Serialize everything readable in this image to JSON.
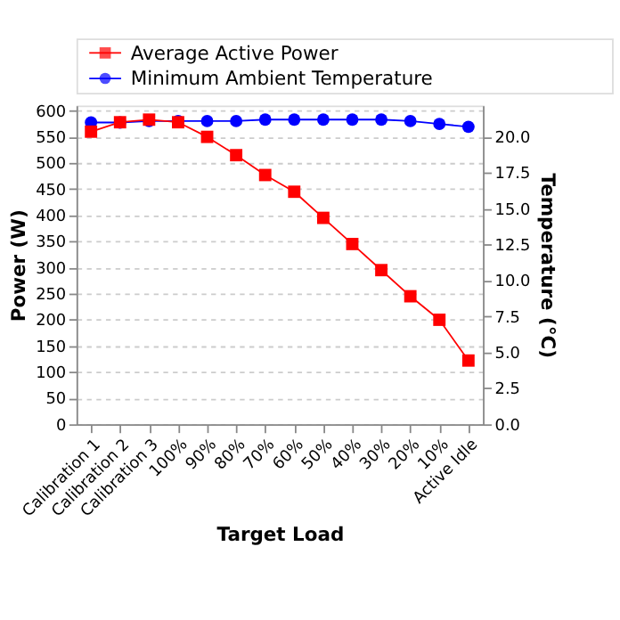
{
  "chart_data": {
    "type": "line",
    "xlabel": "Target Load",
    "ylabel": "Power (W)",
    "y2label": "Temperature  (°C)",
    "categories": [
      "Calibration 1",
      "Calibration 2",
      "Calibration 3",
      "100%",
      "90%",
      "80%",
      "70%",
      "60%",
      "50%",
      "40%",
      "30%",
      "20%",
      "10%",
      "Active Idle"
    ],
    "series": [
      {
        "name": "Average Active Power",
        "color": "#ff0000",
        "marker": "square",
        "values": [
          560,
          578,
          583,
          578,
          550,
          515,
          477,
          445,
          395,
          345,
          295,
          245,
          200,
          122
        ]
      },
      {
        "name": "Minimum Ambient Temperature",
        "color": "#0000ff",
        "marker": "circle",
        "axis": "y2",
        "values": [
          21.0,
          21.0,
          21.1,
          21.1,
          21.1,
          21.1,
          21.2,
          21.2,
          21.2,
          21.2,
          21.2,
          21.1,
          20.9,
          20.7
        ]
      }
    ],
    "ylim": [
      0,
      610
    ],
    "yticks": [
      0,
      50,
      100,
      150,
      200,
      250,
      300,
      350,
      400,
      450,
      500,
      550,
      600
    ],
    "y2lim": [
      0,
      22.18
    ],
    "y2ticks": [
      {
        "value": 0,
        "label": "0.0"
      },
      {
        "value": 2.5,
        "label": "2.5"
      },
      {
        "value": 5,
        "label": "5.0"
      },
      {
        "value": 7.5,
        "label": "7.5"
      },
      {
        "value": 10,
        "label": "10.0"
      },
      {
        "value": 12.5,
        "label": "12.5"
      },
      {
        "value": 15,
        "label": "15.0"
      },
      {
        "value": 17.5,
        "label": "17.5"
      },
      {
        "value": 20,
        "label": "20.0"
      }
    ],
    "grid": "y",
    "legend": "top"
  }
}
